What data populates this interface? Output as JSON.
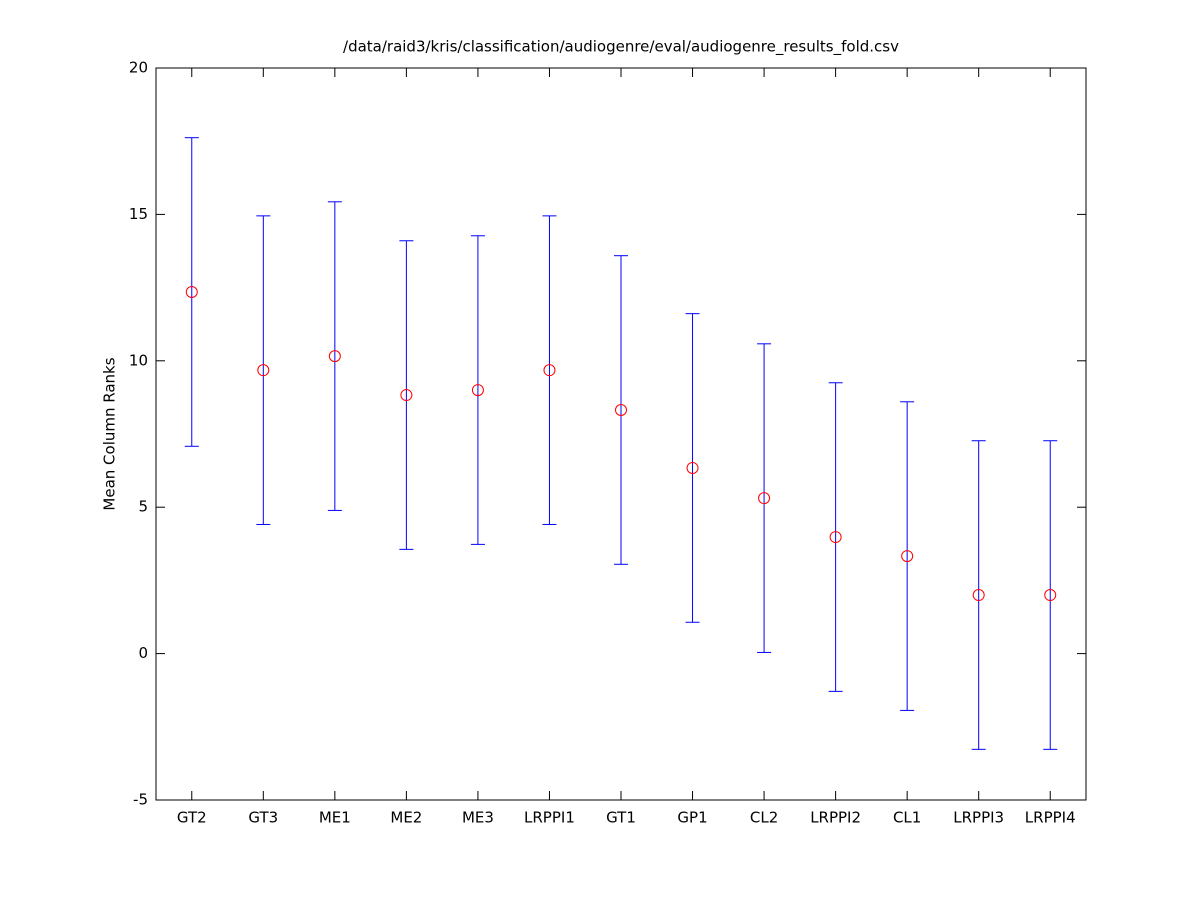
{
  "chart_data": {
    "type": "errorbar",
    "title": "/data/raid3/kris/classification/audiogenre/eval/audiogenre_results_fold.csv",
    "y_label": "Mean Column Ranks",
    "categories": [
      "GT2",
      "GT3",
      "ME1",
      "ME2",
      "ME3",
      "LRPPI1",
      "GT1",
      "GP1",
      "CL2",
      "LRPPI2",
      "CL1",
      "LRPPI3",
      "LRPPI4"
    ],
    "values": [
      12.35,
      9.68,
      10.16,
      8.83,
      9.0,
      9.68,
      8.32,
      6.34,
      5.31,
      3.98,
      3.33,
      2.0,
      2.0
    ],
    "errors": [
      5.27,
      5.27,
      5.27,
      5.27,
      5.27,
      5.27,
      5.27,
      5.27,
      5.27,
      5.27,
      5.27,
      5.27,
      5.27
    ],
    "color": "#0000ff",
    "marker_color": "#ff0000",
    "ylim": [
      -5,
      20
    ],
    "yticks": [
      -5,
      0,
      5,
      10,
      15,
      20
    ],
    "grid": false
  }
}
